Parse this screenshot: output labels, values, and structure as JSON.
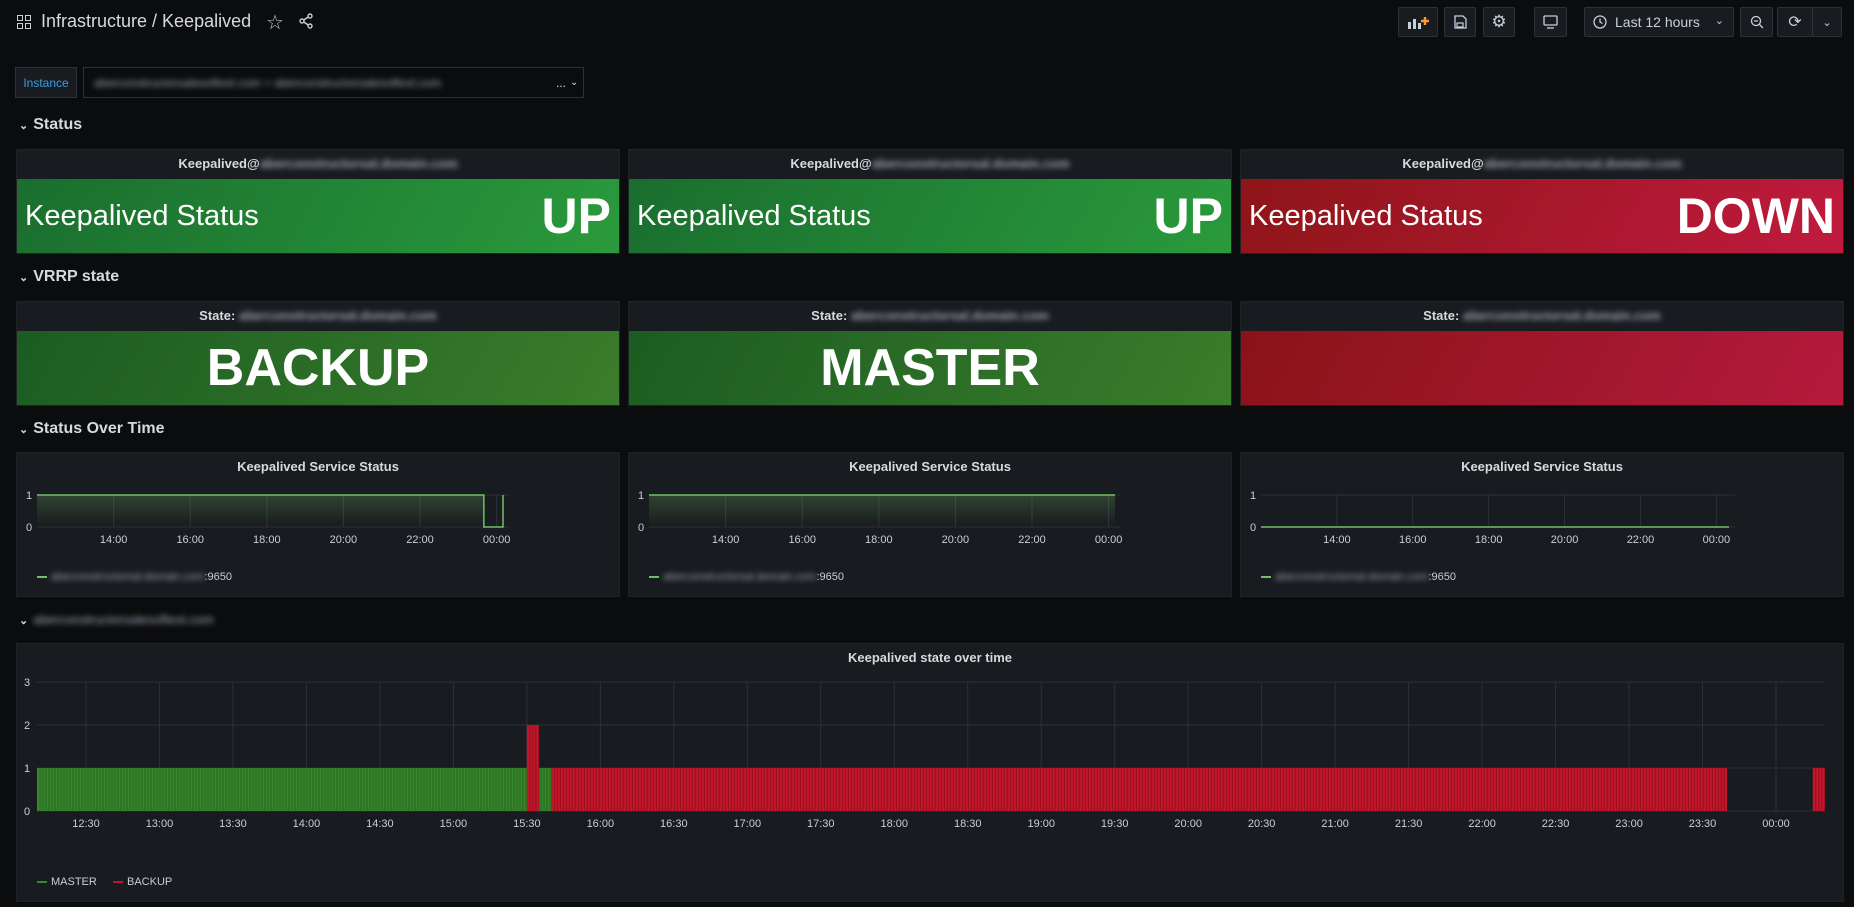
{
  "header": {
    "title": "Infrastructure / Keepalived",
    "time_picker_label": "Last 12 hours"
  },
  "variables": {
    "instance_label": "Instance",
    "instance_value": "aberconstructorsalesoftext.com + aberconstructorsalesoftext.com",
    "instance_ellipsis": "..."
  },
  "rows": {
    "status": "Status",
    "vrrp": "VRRP state",
    "over_time": "Status Over Time",
    "host": "aberconstructorsalesoftext.com"
  },
  "status_panels": [
    {
      "title_prefix": "Keepalived@",
      "title_host": "aberconstructorsal.domain.com",
      "label": "Keepalived Status",
      "value": "UP"
    },
    {
      "title_prefix": "Keepalived@",
      "title_host": "aberconstructorsal.domain.com",
      "label": "Keepalived Status",
      "value": "UP"
    },
    {
      "title_prefix": "Keepalived@",
      "title_host": "aberconstructorsal.domain.com",
      "label": "Keepalived Status",
      "value": "DOWN"
    }
  ],
  "vrrp_panels": [
    {
      "title_prefix": "State: ",
      "title_host": "aberconstructorsal.domain.com",
      "value": "BACKUP"
    },
    {
      "title_prefix": "State: ",
      "title_host": "aberconstructorsal.domain.com",
      "value": "MASTER"
    },
    {
      "title_prefix": "State: ",
      "title_host": "aberconstructorsal.domain.com",
      "value": ""
    }
  ],
  "service_panels": [
    {
      "title": "Keepalived Service Status",
      "legend_host": "aberconstructorsal.domain.com",
      "legend_port": ":9650"
    },
    {
      "title": "Keepalived Service Status",
      "legend_host": "aberconstructorsal.domain.com",
      "legend_port": ":9650"
    },
    {
      "title": "Keepalived Service Status",
      "legend_host": "aberconstructorsal.domain.com",
      "legend_port": ":9650"
    }
  ],
  "state_panel": {
    "title": "Keepalived state over time",
    "legend": [
      "MASTER",
      "BACKUP"
    ]
  },
  "chart_data": [
    {
      "type": "line",
      "title": "Keepalived Service Status",
      "x": [
        "12:00",
        "12:30",
        "13:00",
        "13:30",
        "14:00",
        "14:30",
        "15:00",
        "15:30",
        "16:00",
        "16:30",
        "17:00",
        "17:30",
        "18:00",
        "18:30",
        "19:00",
        "19:30",
        "20:00",
        "20:30",
        "21:00",
        "21:30",
        "22:00",
        "22:30",
        "23:00",
        "23:30",
        "23:40",
        "00:00",
        "00:10"
      ],
      "x_ticks": [
        "14:00",
        "16:00",
        "18:00",
        "20:00",
        "22:00",
        "00:00"
      ],
      "series": [
        {
          "values": [
            1,
            1,
            1,
            1,
            1,
            1,
            1,
            1,
            1,
            1,
            1,
            1,
            1,
            1,
            1,
            1,
            1,
            1,
            1,
            1,
            1,
            1,
            1,
            1,
            0,
            0,
            1
          ]
        }
      ],
      "y_ticks": [
        0,
        1
      ],
      "ylim": [
        0,
        1
      ]
    },
    {
      "type": "line",
      "title": "Keepalived Service Status",
      "x": [
        "12:00",
        "00:10"
      ],
      "x_ticks": [
        "14:00",
        "16:00",
        "18:00",
        "20:00",
        "22:00",
        "00:00"
      ],
      "series": [
        {
          "values": [
            1,
            1
          ]
        }
      ],
      "y_ticks": [
        0,
        1
      ],
      "ylim": [
        0,
        1
      ]
    },
    {
      "type": "line",
      "title": "Keepalived Service Status",
      "x": [
        "12:00",
        "00:20"
      ],
      "x_ticks": [
        "14:00",
        "16:00",
        "18:00",
        "20:00",
        "22:00",
        "00:00"
      ],
      "series": [
        {
          "values": [
            0,
            0
          ]
        }
      ],
      "y_ticks": [
        0,
        1
      ],
      "ylim": [
        0,
        1
      ]
    },
    {
      "type": "bar",
      "title": "Keepalived state over time",
      "x_ticks": [
        "12:30",
        "13:00",
        "13:30",
        "14:00",
        "14:30",
        "15:00",
        "15:30",
        "16:00",
        "16:30",
        "17:00",
        "17:30",
        "18:00",
        "18:30",
        "19:00",
        "19:30",
        "20:00",
        "20:30",
        "21:00",
        "21:30",
        "22:00",
        "22:30",
        "23:00",
        "23:30",
        "00:00"
      ],
      "segments": [
        {
          "series": "MASTER",
          "from": "12:10",
          "to": "15:40",
          "value": 1
        },
        {
          "series": "BACKUP",
          "from": "15:30",
          "to": "15:35",
          "value": 2
        },
        {
          "series": "BACKUP",
          "from": "15:40",
          "to": "23:40",
          "value": 1
        },
        {
          "series": "BACKUP",
          "from": "00:15",
          "to": "00:20",
          "value": 1
        }
      ],
      "series": [
        {
          "name": "MASTER",
          "color": "#37872d"
        },
        {
          "name": "BACKUP",
          "color": "#c4162a"
        }
      ],
      "y_ticks": [
        0,
        1,
        2,
        3
      ],
      "ylim": [
        0,
        3
      ]
    }
  ],
  "colors": {
    "green": "#73bf69",
    "red": "#c4162a",
    "grid": "#2c3235"
  }
}
